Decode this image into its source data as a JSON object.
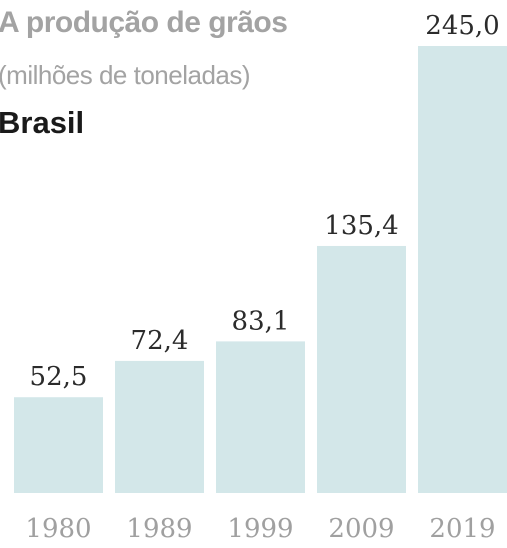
{
  "chart_data": {
    "type": "bar",
    "title": "A produção de grãos",
    "subtitle": "(milhões de toneladas)",
    "region": "Brasil",
    "categories": [
      "1980",
      "1989",
      "1999",
      "2009",
      "2019"
    ],
    "values": [
      52.5,
      72.4,
      83.1,
      135.4,
      245.0
    ],
    "value_labels": [
      "52,5",
      "72,4",
      "83,1",
      "135,4",
      "245,0"
    ],
    "ylim": [
      0,
      245.0
    ],
    "bar_color": "#d3e7e9",
    "grid": false,
    "legend": "none"
  }
}
